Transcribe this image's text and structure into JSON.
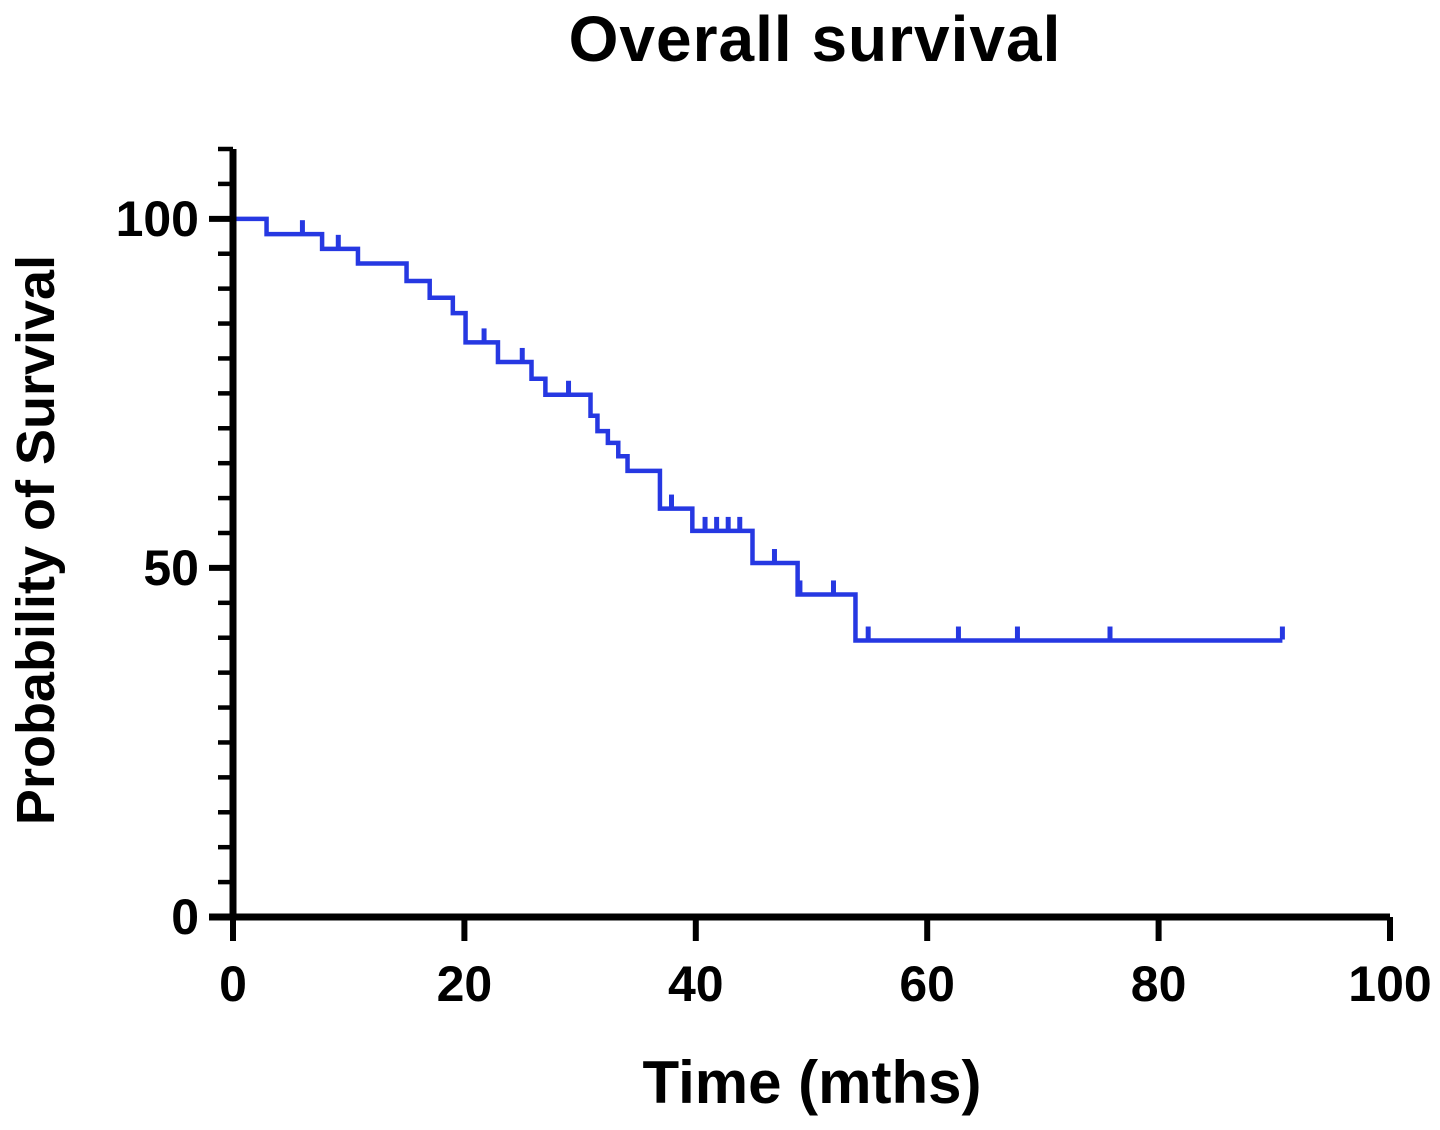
{
  "chart_data": {
    "type": "line",
    "subtype": "kaplan-meier-step-curve",
    "title": "Overall survival",
    "xlabel": "Time (mths)",
    "ylabel": "Probability of Survival",
    "xlim": [
      0,
      100
    ],
    "ylim": [
      0,
      110
    ],
    "x_ticks": [
      0,
      20,
      40,
      60,
      80,
      100
    ],
    "y_major_ticks": [
      0,
      50,
      100
    ],
    "y_minor_tick_step": 5,
    "grid": false,
    "legend": "none",
    "colors": {
      "curve": "#2638e2",
      "axis": "#000000",
      "text": "#000000",
      "background": "#ffffff"
    },
    "series": [
      {
        "name": "Overall survival",
        "start": [
          0,
          100
        ],
        "steps": [
          [
            2.9,
            97.8
          ],
          [
            7.7,
            95.7
          ],
          [
            10.8,
            93.6
          ],
          [
            15.0,
            91.1
          ],
          [
            17.0,
            88.7
          ],
          [
            19.0,
            86.5
          ],
          [
            20.1,
            82.3
          ],
          [
            22.9,
            79.5
          ],
          [
            25.8,
            77.1
          ],
          [
            27.0,
            74.8
          ],
          [
            30.9,
            71.8
          ],
          [
            31.5,
            69.6
          ],
          [
            32.4,
            67.9
          ],
          [
            33.3,
            66.0
          ],
          [
            34.1,
            63.9
          ],
          [
            36.9,
            58.5
          ],
          [
            39.7,
            55.3
          ],
          [
            44.9,
            50.7
          ],
          [
            48.8,
            46.2
          ],
          [
            53.8,
            39.6
          ]
        ],
        "end_time": 90.7,
        "final_value": 39.6,
        "censor_marks": [
          [
            6.0,
            97.8
          ],
          [
            9.1,
            95.7
          ],
          [
            21.7,
            82.3
          ],
          [
            25.0,
            79.5
          ],
          [
            29.0,
            74.8
          ],
          [
            37.9,
            58.5
          ],
          [
            40.8,
            55.3
          ],
          [
            41.8,
            55.3
          ],
          [
            42.8,
            55.3
          ],
          [
            43.8,
            55.3
          ],
          [
            46.8,
            50.7
          ],
          [
            49.0,
            46.2
          ],
          [
            51.9,
            46.2
          ],
          [
            54.9,
            39.6
          ],
          [
            62.7,
            39.6
          ],
          [
            67.8,
            39.6
          ],
          [
            75.8,
            39.6
          ],
          [
            90.7,
            39.6
          ]
        ]
      }
    ]
  }
}
